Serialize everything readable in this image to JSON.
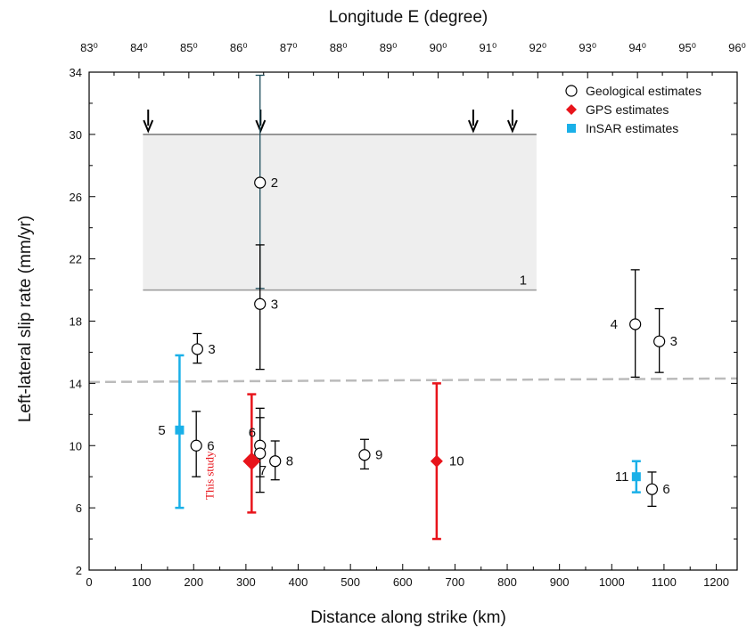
{
  "chart_data": {
    "type": "scatter",
    "xlabel": "Distance along strike  (km)",
    "x2label": "Longitude E (degree)",
    "ylabel": "Left-lateral slip rate (mm/yr)",
    "xlim": [
      0,
      1240
    ],
    "ylim": [
      2,
      34
    ],
    "x_ticks": [
      "0",
      "100",
      "200",
      "300",
      "400",
      "500",
      "600",
      "700",
      "800",
      "900",
      "1000",
      "1100",
      "1200"
    ],
    "x2_ticks": [
      "83⁰",
      "84⁰",
      "85⁰",
      "86⁰",
      "87⁰",
      "88⁰",
      "89⁰",
      "90⁰",
      "91⁰",
      "92⁰",
      "93⁰",
      "94⁰",
      "95⁰",
      "96⁰"
    ],
    "y_ticks": [
      "2",
      "6",
      "10",
      "14",
      "18",
      "22",
      "26",
      "30",
      "34"
    ],
    "legend": {
      "placement": "top-right",
      "items": [
        {
          "label": "Geological estimates",
          "marker": "open-circle",
          "color": "#000000"
        },
        {
          "label": "GPS estimates",
          "marker": "diamond",
          "color": "#e8141b"
        },
        {
          "label": "InSAR estimates",
          "marker": "square",
          "color": "#1ab0e8"
        }
      ]
    },
    "shaded_region": {
      "x_from": 103,
      "x_to": 856,
      "y_from": 20,
      "y_to": 30,
      "label": "1",
      "color": "#eeeeee"
    },
    "arrows_x": [
      113,
      328,
      735,
      810
    ],
    "reference_line": {
      "y": 14.2,
      "style": "dashed",
      "color": "#bbbbbb"
    },
    "series": [
      {
        "name": "Geological estimates",
        "marker": "open-circle",
        "color": "#000000",
        "points": [
          {
            "x": 327,
            "y": 26.9,
            "ylow": 20.1,
            "yhigh": 33.8,
            "label": "2",
            "bar_color": "#1f4e5c"
          },
          {
            "x": 327,
            "y": 19.1,
            "ylow": 14.9,
            "yhigh": 22.9,
            "label": "3"
          },
          {
            "x": 207,
            "y": 16.2,
            "ylow": 15.3,
            "yhigh": 17.2,
            "label": "3"
          },
          {
            "x": 205,
            "y": 10.0,
            "ylow": 8.0,
            "yhigh": 12.2,
            "label": "6"
          },
          {
            "x": 327,
            "y": 10.0,
            "ylow": 8.0,
            "yhigh": 12.4,
            "label": "6"
          },
          {
            "x": 327,
            "y": 9.5,
            "ylow": 7.0,
            "yhigh": 11.8,
            "label": "7"
          },
          {
            "x": 356,
            "y": 9.0,
            "ylow": 7.8,
            "yhigh": 10.3,
            "label": "8"
          },
          {
            "x": 527,
            "y": 9.4,
            "ylow": 8.5,
            "yhigh": 10.4,
            "label": "9"
          },
          {
            "x": 1045,
            "y": 17.8,
            "ylow": 14.4,
            "yhigh": 21.3,
            "label": "4"
          },
          {
            "x": 1091,
            "y": 16.7,
            "ylow": 14.7,
            "yhigh": 18.8,
            "label": "3"
          },
          {
            "x": 1077,
            "y": 7.2,
            "ylow": 6.1,
            "yhigh": 8.3,
            "label": "6"
          }
        ]
      },
      {
        "name": "GPS estimates",
        "marker": "diamond",
        "color": "#e8141b",
        "points": [
          {
            "x": 311,
            "y": 9.0,
            "ylow": 5.7,
            "yhigh": 13.3,
            "label": "This study"
          },
          {
            "x": 665,
            "y": 9.0,
            "ylow": 4.0,
            "yhigh": 14.0,
            "label": "10"
          }
        ]
      },
      {
        "name": "InSAR estimates",
        "marker": "square",
        "color": "#1ab0e8",
        "points": [
          {
            "x": 173,
            "y": 11.0,
            "ylow": 6.0,
            "yhigh": 15.8,
            "label": "5"
          },
          {
            "x": 1047,
            "y": 8.0,
            "ylow": 7.0,
            "yhigh": 9.0,
            "label": "11"
          }
        ]
      }
    ]
  }
}
